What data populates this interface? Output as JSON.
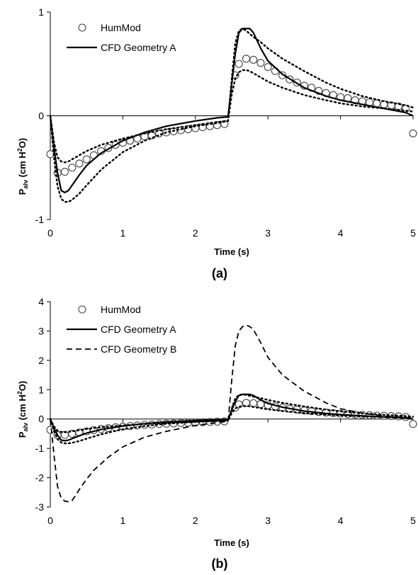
{
  "chart_data": [
    {
      "type": "line",
      "caption": "(a)",
      "xlabel": "Time (s)",
      "ylabel": {
        "base": "P",
        "sub": "alv",
        "mid": " (cm H",
        "sup": "2",
        "tail": "O)"
      },
      "xlim": [
        0,
        5
      ],
      "ylim": [
        -1,
        1
      ],
      "xticks": [
        "0",
        "1",
        "2",
        "3",
        "4",
        "5"
      ],
      "yticks": [
        "-1",
        "0",
        "1"
      ],
      "series": [
        {
          "name": "HumMod",
          "style": "circles",
          "color": "#000000",
          "x": [
            0,
            0.1,
            0.2,
            0.3,
            0.4,
            0.5,
            0.6,
            0.7,
            0.8,
            0.9,
            1.0,
            1.1,
            1.2,
            1.3,
            1.4,
            1.5,
            1.6,
            1.7,
            1.8,
            1.9,
            2.0,
            2.1,
            2.2,
            2.3,
            2.4,
            2.55,
            2.6,
            2.7,
            2.8,
            2.9,
            3.0,
            3.1,
            3.2,
            3.3,
            3.4,
            3.5,
            3.6,
            3.7,
            3.8,
            3.9,
            4.0,
            4.1,
            4.2,
            4.3,
            4.4,
            4.5,
            4.6,
            4.7,
            4.8,
            4.9,
            5.0
          ],
          "y": [
            -0.37,
            -0.55,
            -0.54,
            -0.5,
            -0.46,
            -0.42,
            -0.38,
            -0.34,
            -0.31,
            -0.28,
            -0.26,
            -0.24,
            -0.22,
            -0.2,
            -0.19,
            -0.17,
            -0.16,
            -0.15,
            -0.14,
            -0.13,
            -0.12,
            -0.11,
            -0.1,
            -0.09,
            -0.08,
            0.39,
            0.5,
            0.55,
            0.54,
            0.51,
            0.47,
            0.43,
            0.39,
            0.35,
            0.32,
            0.29,
            0.27,
            0.24,
            0.22,
            0.2,
            0.18,
            0.17,
            0.15,
            0.14,
            0.13,
            0.12,
            0.11,
            0.1,
            0.09,
            0.07,
            -0.17
          ]
        },
        {
          "name": "CFD Geometry A",
          "style": "solid",
          "color": "#000000",
          "x": [
            0,
            0.05,
            0.1,
            0.15,
            0.2,
            0.25,
            0.3,
            0.4,
            0.5,
            0.7,
            1.0,
            1.3,
            1.6,
            2.0,
            2.3,
            2.45,
            2.5,
            2.55,
            2.6,
            2.65,
            2.7,
            2.75,
            2.8,
            2.9,
            3.0,
            3.2,
            3.5,
            3.8,
            4.0,
            4.3,
            4.6,
            4.9,
            5.0
          ],
          "y": [
            0,
            -0.3,
            -0.55,
            -0.72,
            -0.74,
            -0.72,
            -0.67,
            -0.57,
            -0.48,
            -0.36,
            -0.24,
            -0.16,
            -0.1,
            -0.05,
            -0.02,
            -0.01,
            0.3,
            0.6,
            0.8,
            0.84,
            0.84,
            0.84,
            0.8,
            0.65,
            0.53,
            0.4,
            0.27,
            0.19,
            0.15,
            0.11,
            0.07,
            0.03,
            0.0
          ]
        },
        {
          "name": "",
          "style": "dotted",
          "color": "#000000",
          "x": [
            0,
            0.05,
            0.1,
            0.15,
            0.2,
            0.25,
            0.3,
            0.4,
            0.5,
            0.7,
            1.0,
            1.3,
            1.6,
            2.0,
            2.3,
            2.45,
            2.5,
            2.55,
            2.6,
            2.65,
            2.7,
            2.75,
            2.8,
            2.9,
            3.0,
            3.2,
            3.5,
            3.8,
            4.0,
            4.3,
            4.6,
            4.9,
            5.0
          ],
          "y": [
            0,
            -0.4,
            -0.68,
            -0.8,
            -0.83,
            -0.83,
            -0.81,
            -0.75,
            -0.67,
            -0.52,
            -0.35,
            -0.24,
            -0.16,
            -0.1,
            -0.07,
            -0.05,
            0.35,
            0.7,
            0.82,
            0.84,
            0.82,
            0.79,
            0.76,
            0.71,
            0.65,
            0.55,
            0.43,
            0.32,
            0.26,
            0.19,
            0.14,
            0.1,
            0.08
          ]
        },
        {
          "name": "",
          "style": "dotted",
          "color": "#000000",
          "x": [
            0,
            0.05,
            0.1,
            0.15,
            0.2,
            0.25,
            0.3,
            0.4,
            0.5,
            0.7,
            1.0,
            1.3,
            1.6,
            2.0,
            2.3,
            2.45,
            2.5,
            2.55,
            2.6,
            2.65,
            2.7,
            2.75,
            2.8,
            2.9,
            3.0,
            3.2,
            3.5,
            3.8,
            4.0,
            4.3,
            4.6,
            4.9,
            5.0
          ],
          "y": [
            0,
            -0.25,
            -0.4,
            -0.44,
            -0.45,
            -0.44,
            -0.42,
            -0.38,
            -0.34,
            -0.28,
            -0.22,
            -0.17,
            -0.13,
            -0.09,
            -0.06,
            -0.05,
            0.2,
            0.36,
            0.42,
            0.44,
            0.44,
            0.43,
            0.41,
            0.37,
            0.33,
            0.27,
            0.2,
            0.15,
            0.12,
            0.09,
            0.07,
            0.05,
            0.04
          ]
        }
      ],
      "legend": [
        {
          "label": "HumMod",
          "style": "circles"
        },
        {
          "label": "CFD Geometry A",
          "style": "solid"
        }
      ],
      "legend_position": "top-left"
    },
    {
      "type": "line",
      "caption": "(b)",
      "xlabel": "Time (s)",
      "ylabel": {
        "base": "P",
        "sub": "alv",
        "mid": " (cm H",
        "sup": "2",
        "tail": "O)"
      },
      "xlim": [
        0,
        5
      ],
      "ylim": [
        -3,
        4
      ],
      "xticks": [
        "0",
        "1",
        "2",
        "3",
        "4",
        "5"
      ],
      "yticks": [
        "-3",
        "-2",
        "-1",
        "0",
        "1",
        "2",
        "3",
        "4"
      ],
      "series": [
        {
          "name": "HumMod",
          "style": "circles",
          "color": "#000000",
          "x": [
            0,
            0.1,
            0.2,
            0.3,
            0.4,
            0.5,
            0.6,
            0.7,
            0.8,
            0.9,
            1.0,
            1.1,
            1.2,
            1.3,
            1.4,
            1.5,
            1.6,
            1.7,
            1.8,
            1.9,
            2.0,
            2.1,
            2.2,
            2.3,
            2.4,
            2.55,
            2.6,
            2.7,
            2.8,
            2.9,
            3.0,
            3.1,
            3.2,
            3.3,
            3.4,
            3.5,
            3.6,
            3.7,
            3.8,
            3.9,
            4.0,
            4.1,
            4.2,
            4.3,
            4.4,
            4.5,
            4.6,
            4.7,
            4.8,
            4.9,
            5.0
          ],
          "y": [
            -0.37,
            -0.55,
            -0.54,
            -0.5,
            -0.46,
            -0.42,
            -0.38,
            -0.34,
            -0.31,
            -0.28,
            -0.26,
            -0.24,
            -0.22,
            -0.2,
            -0.19,
            -0.17,
            -0.16,
            -0.15,
            -0.14,
            -0.13,
            -0.12,
            -0.11,
            -0.1,
            -0.09,
            -0.08,
            0.39,
            0.5,
            0.55,
            0.54,
            0.51,
            0.47,
            0.43,
            0.39,
            0.35,
            0.32,
            0.29,
            0.27,
            0.24,
            0.22,
            0.2,
            0.18,
            0.17,
            0.15,
            0.14,
            0.13,
            0.12,
            0.11,
            0.1,
            0.09,
            0.07,
            -0.17
          ]
        },
        {
          "name": "CFD Geometry A",
          "style": "solid",
          "color": "#000000",
          "x": [
            0,
            0.05,
            0.1,
            0.15,
            0.2,
            0.25,
            0.3,
            0.4,
            0.5,
            0.7,
            1.0,
            1.3,
            1.6,
            2.0,
            2.3,
            2.45,
            2.5,
            2.55,
            2.6,
            2.65,
            2.7,
            2.75,
            2.8,
            2.9,
            3.0,
            3.2,
            3.5,
            3.8,
            4.0,
            4.3,
            4.6,
            4.9,
            5.0
          ],
          "y": [
            0,
            -0.3,
            -0.55,
            -0.72,
            -0.74,
            -0.72,
            -0.67,
            -0.57,
            -0.48,
            -0.36,
            -0.24,
            -0.16,
            -0.1,
            -0.05,
            -0.02,
            -0.01,
            0.3,
            0.6,
            0.8,
            0.84,
            0.84,
            0.84,
            0.8,
            0.65,
            0.53,
            0.4,
            0.27,
            0.19,
            0.15,
            0.11,
            0.07,
            0.03,
            0.0
          ]
        },
        {
          "name": "CFD Geometry B",
          "style": "dashed",
          "color": "#000000",
          "x": [
            0,
            0.05,
            0.1,
            0.15,
            0.2,
            0.25,
            0.3,
            0.35,
            0.4,
            0.5,
            0.6,
            0.8,
            1.0,
            1.3,
            1.6,
            2.0,
            2.3,
            2.45,
            2.5,
            2.55,
            2.6,
            2.65,
            2.7,
            2.75,
            2.8,
            2.9,
            3.0,
            3.2,
            3.5,
            3.8,
            4.0,
            4.3,
            4.6,
            4.9,
            5.0
          ],
          "y": [
            0,
            -1.2,
            -2.3,
            -2.7,
            -2.8,
            -2.82,
            -2.78,
            -2.6,
            -2.4,
            -2.05,
            -1.75,
            -1.3,
            -0.95,
            -0.62,
            -0.42,
            -0.22,
            -0.12,
            -0.08,
            1.3,
            2.5,
            3.0,
            3.15,
            3.2,
            3.15,
            3.05,
            2.6,
            2.1,
            1.5,
            0.95,
            0.55,
            0.35,
            0.2,
            0.1,
            0.05,
            0.02
          ]
        },
        {
          "name": "",
          "style": "dotted",
          "color": "#000000",
          "x": [
            0,
            0.05,
            0.1,
            0.15,
            0.2,
            0.25,
            0.3,
            0.4,
            0.5,
            0.7,
            1.0,
            1.3,
            1.6,
            2.0,
            2.3,
            2.45,
            2.5,
            2.55,
            2.6,
            2.65,
            2.7,
            2.75,
            2.8,
            2.9,
            3.0,
            3.2,
            3.5,
            3.8,
            4.0,
            4.3,
            4.6,
            4.9,
            5.0
          ],
          "y": [
            0,
            -0.4,
            -0.68,
            -0.8,
            -0.83,
            -0.83,
            -0.81,
            -0.75,
            -0.67,
            -0.52,
            -0.35,
            -0.24,
            -0.16,
            -0.1,
            -0.07,
            -0.05,
            0.35,
            0.7,
            0.82,
            0.84,
            0.82,
            0.79,
            0.76,
            0.71,
            0.65,
            0.55,
            0.43,
            0.32,
            0.26,
            0.19,
            0.14,
            0.1,
            0.08
          ]
        },
        {
          "name": "",
          "style": "dotted",
          "color": "#000000",
          "x": [
            0,
            0.05,
            0.1,
            0.15,
            0.2,
            0.25,
            0.3,
            0.4,
            0.5,
            0.7,
            1.0,
            1.3,
            1.6,
            2.0,
            2.3,
            2.45,
            2.5,
            2.55,
            2.6,
            2.65,
            2.7,
            2.75,
            2.8,
            2.9,
            3.0,
            3.2,
            3.5,
            3.8,
            4.0,
            4.3,
            4.6,
            4.9,
            5.0
          ],
          "y": [
            0,
            -0.25,
            -0.4,
            -0.44,
            -0.45,
            -0.44,
            -0.42,
            -0.38,
            -0.34,
            -0.28,
            -0.22,
            -0.17,
            -0.13,
            -0.09,
            -0.06,
            -0.05,
            0.2,
            0.36,
            0.42,
            0.44,
            0.44,
            0.43,
            0.41,
            0.37,
            0.33,
            0.27,
            0.2,
            0.15,
            0.12,
            0.09,
            0.07,
            0.05,
            0.04
          ]
        }
      ],
      "legend": [
        {
          "label": "HumMod",
          "style": "circles"
        },
        {
          "label": "CFD Geometry A",
          "style": "solid"
        },
        {
          "label": "CFD Geometry B",
          "style": "dashed"
        }
      ],
      "legend_position": "top-left"
    }
  ]
}
